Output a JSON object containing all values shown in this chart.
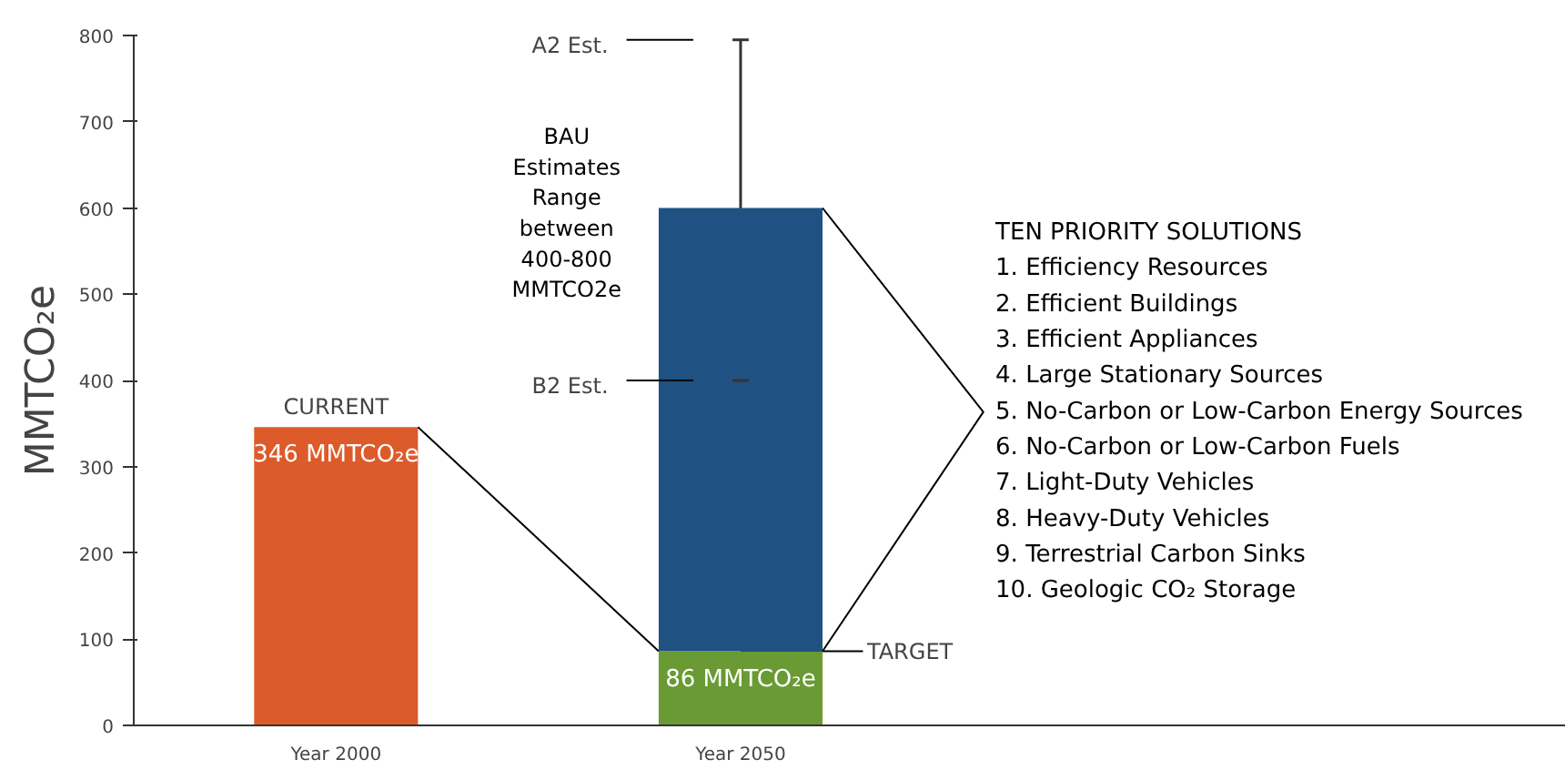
{
  "chart_data": {
    "type": "bar",
    "stacked": true,
    "ylabel": "MMTCO₂e",
    "categories": [
      "Year 2000",
      "Year 2050"
    ],
    "series": [
      {
        "colors": [
          "#dd5b2b",
          "#6a9a33"
        ],
        "values": [
          346,
          86
        ],
        "value_labels": [
          "346 MMTCO₂e",
          "86 MMTCO₂e"
        ]
      },
      {
        "color": "#1f5282",
        "values": [
          null,
          514
        ],
        "errors": [
          null,
          [
            400,
            795
          ]
        ]
      }
    ],
    "ylim": [
      0,
      800
    ],
    "yticks": [
      0,
      100,
      200,
      300,
      400,
      500,
      600,
      700,
      800
    ],
    "grid": false,
    "annotations": [
      {
        "text": "CURRENT",
        "x": "Year 2000",
        "y": 346
      },
      "A2 Est.",
      "B2 Est.",
      {
        "text": "TARGET",
        "x": "Year 2050",
        "y": 86
      },
      "BAU Estimates Range between 400-800 MMTCO2e",
      "TEN PRIORITY SOLUTIONS",
      "1. Efficiency Resources",
      "2. Efficient Buildings",
      "3. Efficient Appliances",
      "4. Large Stationary Sources",
      "5. No-Carbon or Low-Carbon Energy Sources",
      "6. No-Carbon or Low-Carbon Fuels",
      "7. Light-Duty Vehicles",
      "8. Heavy-Duty Vehicles",
      "9. Terrestrial Carbon Sinks",
      "10. Geologic CO₂ Storage"
    ]
  }
}
